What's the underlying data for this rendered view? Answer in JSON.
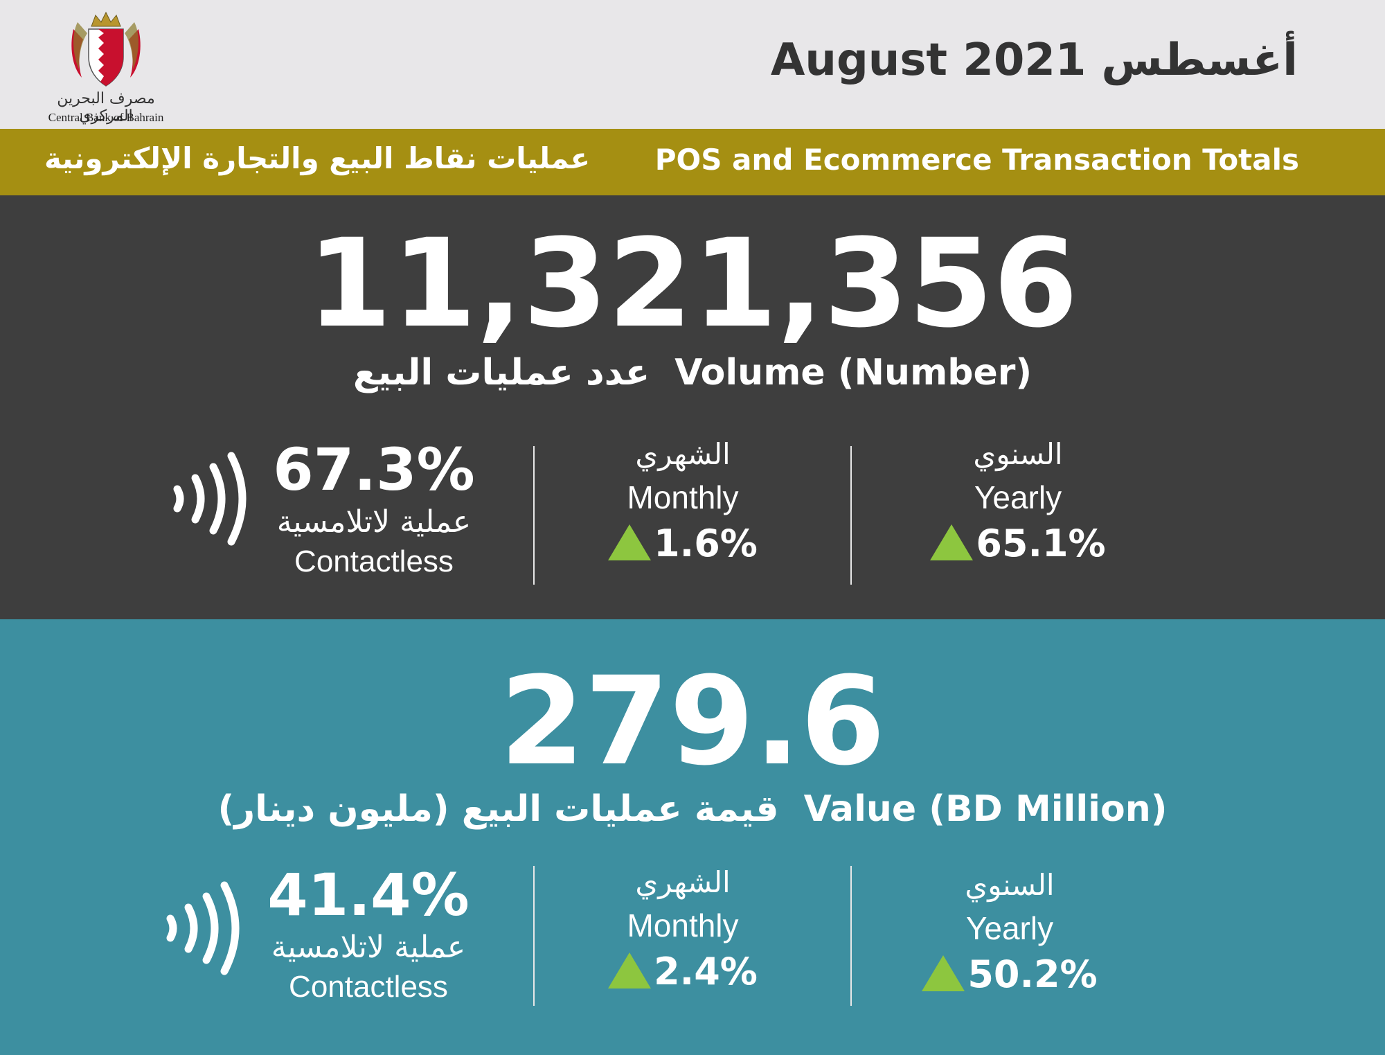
{
  "header": {
    "logo_arabic": "مصرف البحرين المركزي",
    "logo_english": "Central Bank of Bahrain",
    "title_english": "August 2021",
    "title_arabic": "أغسطس"
  },
  "band": {
    "title_english": "POS and Ecommerce Transaction Totals",
    "title_arabic": "عمليات نقاط البيع والتجارة الإلكترونية"
  },
  "volume": {
    "number": "11,321,356",
    "label_english": "Volume (Number)",
    "label_arabic": "عدد عمليات البيع",
    "contactless": {
      "percent": "67.3%",
      "label_arabic": "عملية لاتلامسية",
      "label_english": "Contactless",
      "icon": "contactless-icon"
    },
    "monthly": {
      "label_arabic": "الشهري",
      "label_english": "Monthly",
      "change": "1.6%",
      "direction": "up"
    },
    "yearly": {
      "label_arabic": "السنوي",
      "label_english": "Yearly",
      "change": "65.1%",
      "direction": "up"
    }
  },
  "value": {
    "number": "279.6",
    "label_english": "Value (BD Million)",
    "label_arabic": "قيمة عمليات البيع (مليون دينار)",
    "contactless": {
      "percent": "41.4%",
      "label_arabic": "عملية لاتلامسية",
      "label_english": "Contactless",
      "icon": "contactless-icon"
    },
    "monthly": {
      "label_arabic": "الشهري",
      "label_english": "Monthly",
      "change": "2.4%",
      "direction": "up"
    },
    "yearly": {
      "label_arabic": "السنوي",
      "label_english": "Yearly",
      "change": "50.2%",
      "direction": "up"
    }
  },
  "colors": {
    "header_bg": "#e8e7e9",
    "band_gold": "#a58f12",
    "volume_bg": "#3e3e3e",
    "value_bg": "#3d8fa0",
    "up_arrow": "#8dc63f"
  }
}
